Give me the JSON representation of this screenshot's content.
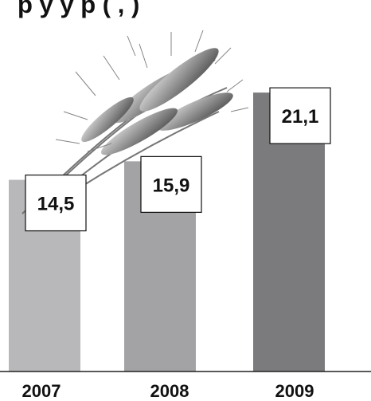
{
  "chart_data": {
    "type": "bar",
    "title": "р       у    у р ( , )",
    "categories": [
      "2007",
      "2008",
      "2009"
    ],
    "values": [
      14.5,
      15.9,
      21.1
    ],
    "value_labels": [
      "14,5",
      "15,9",
      "21,1"
    ],
    "bar_colors": [
      "#b8b8ba",
      "#a3a3a5",
      "#7b7b7d"
    ],
    "ylim": [
      0,
      23.4
    ],
    "grid": false,
    "legend": "none",
    "decoration": "wheat-ears-icon"
  }
}
